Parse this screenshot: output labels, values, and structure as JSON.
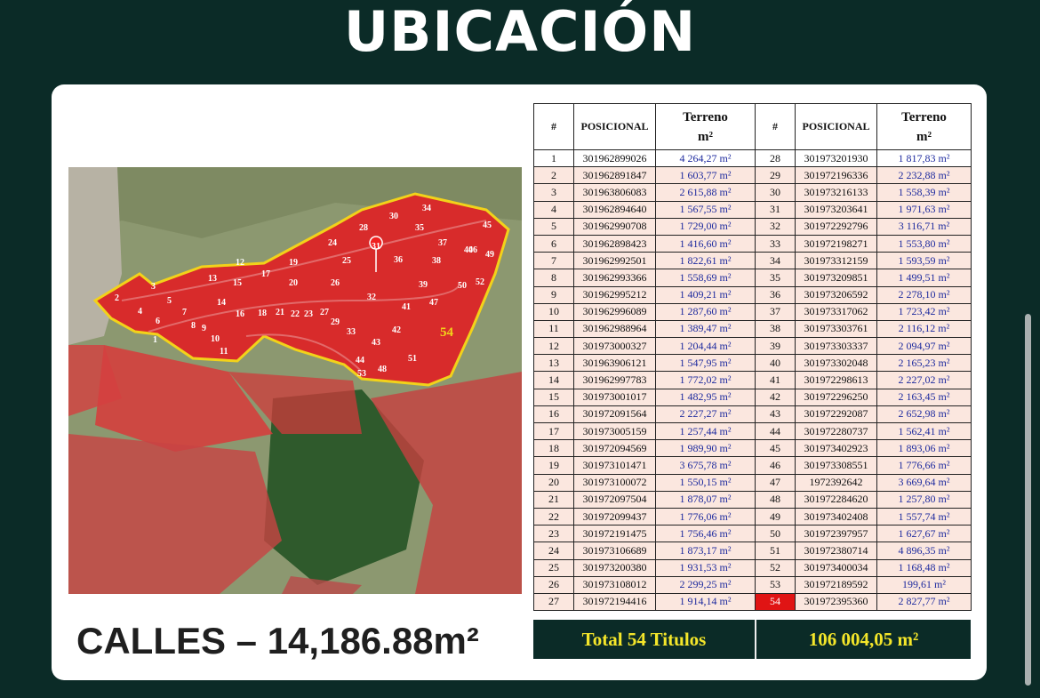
{
  "title": "UBICACIÓN",
  "calles_label": "CALLES – 14,186.88m²",
  "map": {
    "big_label": "54",
    "plot_numbers": [
      "1",
      "2",
      "3",
      "4",
      "5",
      "6",
      "7",
      "8",
      "9",
      "10",
      "11",
      "12",
      "13",
      "14",
      "15",
      "16",
      "17",
      "18",
      "19",
      "20",
      "21",
      "22",
      "23",
      "24",
      "25",
      "26",
      "27",
      "28",
      "29",
      "30",
      "31",
      "32",
      "33",
      "34",
      "35",
      "36",
      "37",
      "38",
      "39",
      "40",
      "41",
      "42",
      "43",
      "44",
      "45",
      "46",
      "47",
      "48",
      "49",
      "50",
      "51",
      "52",
      "53"
    ]
  },
  "table": {
    "headers": {
      "num": "#",
      "pos": "POSICIONAL",
      "terreno": "Terreno",
      "unit": "m²"
    },
    "left": [
      {
        "n": "1",
        "p": "301962899026",
        "a": "4 264,27 m²"
      },
      {
        "n": "2",
        "p": "301962891847",
        "a": "1 603,77 m²"
      },
      {
        "n": "3",
        "p": "301963806083",
        "a": "2 615,88 m²"
      },
      {
        "n": "4",
        "p": "301962894640",
        "a": "1 567,55 m²"
      },
      {
        "n": "5",
        "p": "301962990708",
        "a": "1 729,00 m²"
      },
      {
        "n": "6",
        "p": "301962898423",
        "a": "1 416,60 m²"
      },
      {
        "n": "7",
        "p": "301962992501",
        "a": "1 822,61 m²"
      },
      {
        "n": "8",
        "p": "301962993366",
        "a": "1 558,69 m²"
      },
      {
        "n": "9",
        "p": "301962995212",
        "a": "1 409,21 m²"
      },
      {
        "n": "10",
        "p": "301962996089",
        "a": "1 287,60 m²"
      },
      {
        "n": "11",
        "p": "301962988964",
        "a": "1 389,47 m²"
      },
      {
        "n": "12",
        "p": "301973000327",
        "a": "1 204,44 m²"
      },
      {
        "n": "13",
        "p": "301963906121",
        "a": "1 547,95 m²"
      },
      {
        "n": "14",
        "p": "301962997783",
        "a": "1 772,02 m²"
      },
      {
        "n": "15",
        "p": "301973001017",
        "a": "1 482,95 m²"
      },
      {
        "n": "16",
        "p": "301972091564",
        "a": "2 227,27 m²"
      },
      {
        "n": "17",
        "p": "301973005159",
        "a": "1 257,44 m²"
      },
      {
        "n": "18",
        "p": "301972094569",
        "a": "1 989,90 m²"
      },
      {
        "n": "19",
        "p": "301973101471",
        "a": "3 675,78 m²"
      },
      {
        "n": "20",
        "p": "301973100072",
        "a": "1 550,15 m²"
      },
      {
        "n": "21",
        "p": "301972097504",
        "a": "1 878,07 m²"
      },
      {
        "n": "22",
        "p": "301972099437",
        "a": "1 776,06 m²"
      },
      {
        "n": "23",
        "p": "301972191475",
        "a": "1 756,46 m²"
      },
      {
        "n": "24",
        "p": "301973106689",
        "a": "1 873,17 m²"
      },
      {
        "n": "25",
        "p": "301973200380",
        "a": "1 931,53 m²"
      },
      {
        "n": "26",
        "p": "301973108012",
        "a": "2 299,25 m²"
      },
      {
        "n": "27",
        "p": "301972194416",
        "a": "1 914,14 m²"
      }
    ],
    "right": [
      {
        "n": "28",
        "p": "301973201930",
        "a": "1 817,83 m²"
      },
      {
        "n": "29",
        "p": "301972196336",
        "a": "2 232,88 m²"
      },
      {
        "n": "30",
        "p": "301973216133",
        "a": "1 558,39 m²"
      },
      {
        "n": "31",
        "p": "301973203641",
        "a": "1 971,63 m²"
      },
      {
        "n": "32",
        "p": "301972292796",
        "a": "3 116,71 m²"
      },
      {
        "n": "33",
        "p": "301972198271",
        "a": "1 553,80 m²"
      },
      {
        "n": "34",
        "p": "301973312159",
        "a": "1 593,59 m²"
      },
      {
        "n": "35",
        "p": "301973209851",
        "a": "1 499,51 m²"
      },
      {
        "n": "36",
        "p": "301973206592",
        "a": "2 278,10 m²"
      },
      {
        "n": "37",
        "p": "301973317062",
        "a": "1 723,42 m²"
      },
      {
        "n": "38",
        "p": "301973303761",
        "a": "2 116,12 m²"
      },
      {
        "n": "39",
        "p": "301973303337",
        "a": "2 094,97 m²"
      },
      {
        "n": "40",
        "p": "301973302048",
        "a": "2 165,23 m²"
      },
      {
        "n": "41",
        "p": "301972298613",
        "a": "2 227,02 m²"
      },
      {
        "n": "42",
        "p": "301972296250",
        "a": "2 163,45 m²"
      },
      {
        "n": "43",
        "p": "301972292087",
        "a": "2 652,98 m²"
      },
      {
        "n": "44",
        "p": "301972280737",
        "a": "1 562,41 m²"
      },
      {
        "n": "45",
        "p": "301973402923",
        "a": "1 893,06 m²"
      },
      {
        "n": "46",
        "p": "301973308551",
        "a": "1 776,66 m²"
      },
      {
        "n": "47",
        "p": "1972392642",
        "a": "3 669,64 m²"
      },
      {
        "n": "48",
        "p": "301972284620",
        "a": "1 257,80 m²"
      },
      {
        "n": "49",
        "p": "301973402408",
        "a": "1 557,74 m²"
      },
      {
        "n": "50",
        "p": "301972397957",
        "a": "1 627,67 m²"
      },
      {
        "n": "51",
        "p": "301972380714",
        "a": "4 896,35 m²"
      },
      {
        "n": "52",
        "p": "301973400034",
        "a": "1 168,48 m²"
      },
      {
        "n": "53",
        "p": "301972189592",
        "a": "199,61 m²"
      },
      {
        "n": "54",
        "p": "301972395360",
        "a": "2 827,77 m²",
        "highlight": true
      }
    ]
  },
  "totals": {
    "titles": "Total 54 Titulos",
    "area": "106 004,05 m²"
  },
  "colors": {
    "background": "#0b2b27",
    "totals_text": "#f4e62a",
    "area_text": "#1d2a9e",
    "highlight": "#e01414",
    "boundary": "#f2d21a"
  }
}
